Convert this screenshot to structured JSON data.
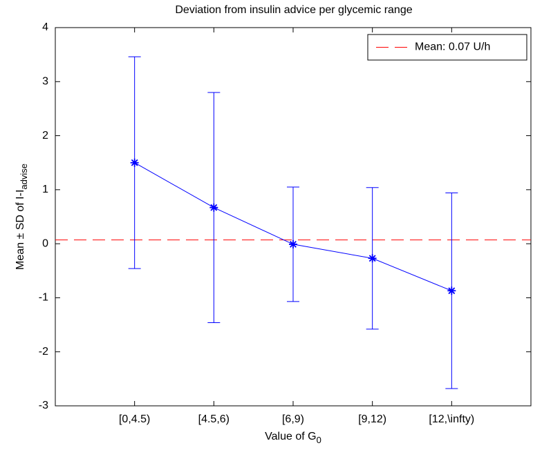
{
  "chart_data": {
    "type": "line",
    "title": "Deviation from insulin advice per glycemic range",
    "x_label": {
      "text": "Value of G",
      "subscript": "0"
    },
    "y_label": {
      "text": "Mean ± SD of  I-I",
      "subscript": "advise"
    },
    "categories": [
      "[0,4.5)",
      "[4.5,6)",
      "[6,9)",
      "[9,12)",
      "[12,\\infty)"
    ],
    "x": [
      1,
      2,
      3,
      4,
      5
    ],
    "xlim": [
      0,
      6
    ],
    "series": [
      {
        "color": "#0000ff",
        "values": [
          1.5,
          0.67,
          -0.01,
          -0.27,
          -0.87
        ],
        "errors": [
          1.96,
          2.13,
          1.06,
          1.31,
          1.81
        ]
      }
    ],
    "reference_line": {
      "name": "Mean: 0.07 U/h",
      "value": 0.07,
      "color": "#ff0000"
    },
    "ylim": [
      -3,
      4
    ],
    "yticks": [
      -3,
      -2,
      -1,
      0,
      1,
      2,
      3,
      4
    ],
    "legend": "upper right",
    "grid": false
  }
}
